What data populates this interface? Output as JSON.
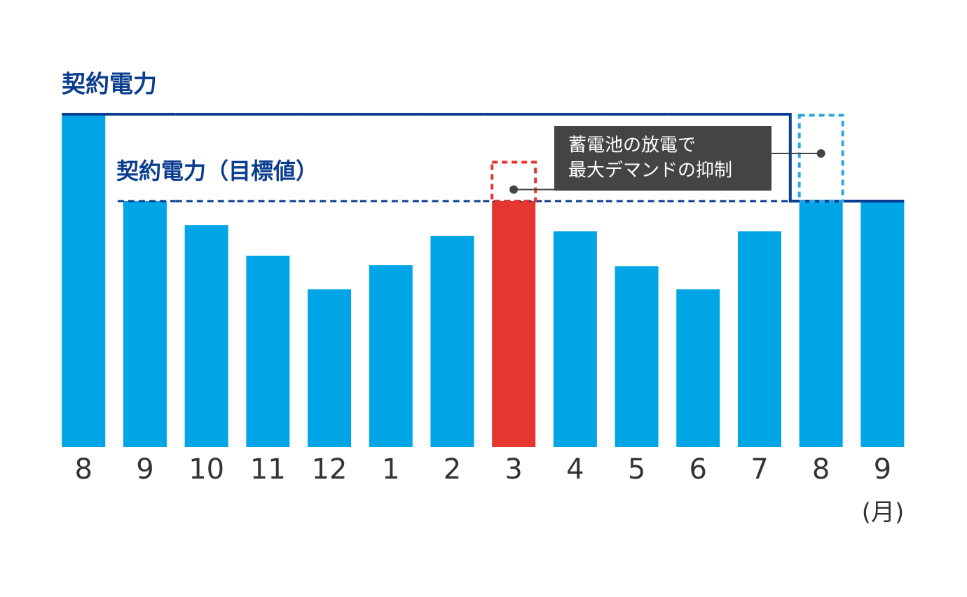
{
  "chart_data": {
    "type": "bar",
    "title": "契約電力",
    "target_label": "契約電力（目標値）",
    "x_unit": "(月)",
    "callout": [
      "蓄電池の放電で",
      "最大デマンドの抑制"
    ],
    "categories": [
      "8",
      "9",
      "10",
      "11",
      "12",
      "1",
      "2",
      "3",
      "4",
      "5",
      "6",
      "7",
      "8",
      "9"
    ],
    "values": [
      100,
      73.9,
      66.7,
      57.5,
      47.4,
      54.7,
      63.4,
      73.9,
      64.8,
      54.3,
      47.4,
      64.8,
      73.9,
      73.9
    ],
    "colors": [
      "#00a5e6",
      "#00a5e6",
      "#00a5e6",
      "#00a5e6",
      "#00a5e6",
      "#00a5e6",
      "#00a5e6",
      "#e53730",
      "#00a5e6",
      "#00a5e6",
      "#00a5e6",
      "#00a5e6",
      "#00a5e6",
      "#00a5e6"
    ],
    "contract": [
      100,
      100,
      100,
      100,
      100,
      100,
      100,
      100,
      100,
      100,
      100,
      100,
      73.9,
      73.9
    ],
    "contract_color": "#0a3d8f",
    "target": [
      null,
      73.9,
      73.9,
      73.9,
      73.9,
      73.9,
      73.9,
      73.9,
      73.9,
      73.9,
      73.9,
      73.9,
      null,
      null
    ],
    "peak_without_battery": [
      null,
      null,
      null,
      null,
      null,
      null,
      null,
      85.9,
      null,
      null,
      null,
      null,
      100,
      null
    ],
    "peak_colors": [
      null,
      null,
      null,
      null,
      null,
      null,
      null,
      "#e53730",
      null,
      null,
      null,
      null,
      "#29a8e0",
      null
    ],
    "ylim": [
      0,
      100
    ]
  }
}
